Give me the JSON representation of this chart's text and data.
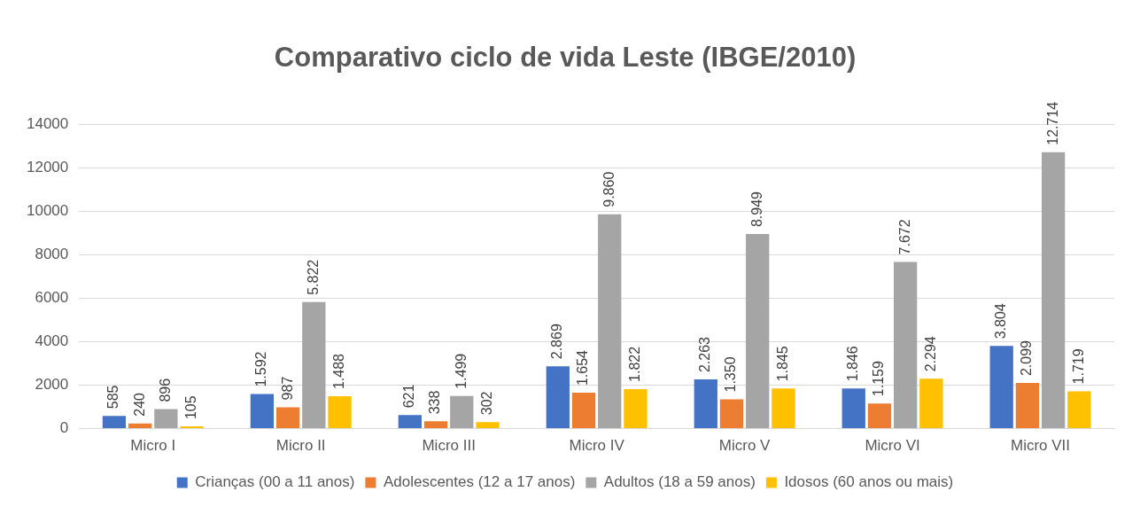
{
  "chart_data": {
    "type": "bar",
    "title": "Comparativo ciclo de vida Leste (IBGE/2010)",
    "categories": [
      "Micro I",
      "Micro II",
      "Micro III",
      "Micro IV",
      "Micro V",
      "Micro VI",
      "Micro VII"
    ],
    "series": [
      {
        "name": "Crianças (00 a 11 anos)",
        "color": "#4472c4",
        "values": [
          585,
          1592,
          621,
          2869,
          2263,
          1846,
          3804
        ],
        "value_labels": [
          "585",
          "1.592",
          "621",
          "2.869",
          "2.263",
          "1.846",
          "3.804"
        ]
      },
      {
        "name": "Adolescentes (12 a 17 anos)",
        "color": "#ed7d31",
        "values": [
          240,
          987,
          338,
          1654,
          1350,
          1159,
          2099
        ],
        "value_labels": [
          "240",
          "987",
          "338",
          "1.654",
          "1.350",
          "1.159",
          "2.099"
        ]
      },
      {
        "name": "Adultos (18 a 59 anos)",
        "color": "#a5a5a5",
        "values": [
          896,
          5822,
          1499,
          9860,
          8949,
          7672,
          12714
        ],
        "value_labels": [
          "896",
          "5.822",
          "1.499",
          "9.860",
          "8.949",
          "7.672",
          "12.714"
        ]
      },
      {
        "name": "Idosos (60 anos ou mais)",
        "color": "#ffc000",
        "values": [
          105,
          1488,
          302,
          1822,
          1845,
          2294,
          1719
        ],
        "value_labels": [
          "105",
          "1.488",
          "302",
          "1.822",
          "1.845",
          "2.294",
          "1.719"
        ]
      }
    ],
    "ylim": [
      0,
      14000
    ],
    "yticks": [
      0,
      2000,
      4000,
      6000,
      8000,
      10000,
      12000,
      14000
    ],
    "grid": "y",
    "legend": "bottom"
  }
}
